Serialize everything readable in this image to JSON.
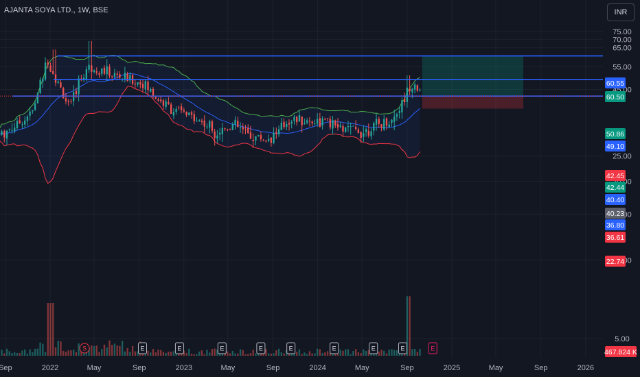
{
  "title": "AJANTA SOYA LTD., 1W, BSE",
  "currency": "INR",
  "chart_data": {
    "type": "candlestick",
    "symbol": "AJANTA SOYA LTD.",
    "interval": "1W",
    "exchange": "BSE",
    "y_ticks": [
      5,
      10,
      15,
      20,
      25,
      40.23,
      45,
      55,
      65,
      70,
      75
    ],
    "x_ticks": [
      "Sep",
      "2022",
      "May",
      "Sep",
      "2023",
      "May",
      "Sep",
      "2024",
      "May",
      "Sep",
      "2025",
      "May",
      "Sep",
      "2026"
    ],
    "colors": {
      "up": "#26a69a",
      "down": "#ef5350",
      "bb_upper": "#4caf50",
      "bb_lower": "#f23645",
      "bb_basis": "#2962ff",
      "horizontal_line": "#2962ff",
      "target_zone": "#089981",
      "stop_zone": "#f23645"
    },
    "horizontal_lines": [
      60.5,
      49.1,
      42.44
    ],
    "position": {
      "entry": 42.45,
      "target": 60.55,
      "stop": 38.0
    },
    "price_labels": [
      {
        "value": "60.55",
        "color": "#2962ff"
      },
      {
        "value": "60.50",
        "color": "#089981"
      },
      {
        "value": "50.86",
        "color": "#089981"
      },
      {
        "value": "49.10",
        "color": "#2962ff"
      },
      {
        "value": "45.00",
        "color": "none"
      },
      {
        "value": "42.45",
        "color": "#f23645"
      },
      {
        "value": "42.44",
        "color": "#089981"
      },
      {
        "value": "40.40",
        "color": "#2962ff"
      },
      {
        "value": "40.23",
        "color": "#5d606b"
      },
      {
        "value": "36.80",
        "color": "#2962ff"
      },
      {
        "value": "36.61",
        "color": "#f23645"
      },
      {
        "value": "22.74",
        "color": "#f23645"
      },
      {
        "value": "467.824 K",
        "color": "#f23645"
      }
    ],
    "events": [
      {
        "date": "2022-04-05",
        "label": "S",
        "kind": "split"
      },
      {
        "date": "2022-09-10",
        "label": "E",
        "kind": "earnings"
      },
      {
        "date": "2022-12-20",
        "label": "E",
        "kind": "earnings"
      },
      {
        "date": "2023-04-15",
        "label": "E",
        "kind": "earnings"
      },
      {
        "date": "2023-07-30",
        "label": "E",
        "kind": "earnings"
      },
      {
        "date": "2023-10-20",
        "label": "E",
        "kind": "earnings"
      },
      {
        "date": "2024-02-15",
        "label": "E",
        "kind": "earnings"
      },
      {
        "date": "2024-06-01",
        "label": "E",
        "kind": "earnings"
      },
      {
        "date": "2024-08-20",
        "label": "E",
        "kind": "earnings"
      },
      {
        "date": "2024-11-10",
        "label": "E",
        "kind": "upcoming-earnings"
      }
    ],
    "ohlc_anchors": [
      {
        "date": "2021-08-15",
        "close": 30
      },
      {
        "date": "2021-10-01",
        "close": 33
      },
      {
        "date": "2021-11-15",
        "close": 37
      },
      {
        "date": "2021-12-10",
        "close": 50
      },
      {
        "date": "2021-12-25",
        "close": 58
      },
      {
        "date": "2022-01-10",
        "close": 52
      },
      {
        "date": "2022-02-05",
        "close": 43
      },
      {
        "date": "2022-02-25",
        "close": 38
      },
      {
        "date": "2022-03-20",
        "close": 48
      },
      {
        "date": "2022-04-15",
        "close": 55
      },
      {
        "date": "2022-05-15",
        "close": 54
      },
      {
        "date": "2022-06-20",
        "close": 51
      },
      {
        "date": "2022-08-10",
        "close": 49
      },
      {
        "date": "2022-09-15",
        "close": 47
      },
      {
        "date": "2022-10-15",
        "close": 42
      },
      {
        "date": "2022-11-15",
        "close": 39
      },
      {
        "date": "2022-12-15",
        "close": 37
      },
      {
        "date": "2023-02-01",
        "close": 35
      },
      {
        "date": "2023-04-01",
        "close": 31
      },
      {
        "date": "2023-05-15",
        "close": 33
      },
      {
        "date": "2023-07-01",
        "close": 30
      },
      {
        "date": "2023-08-15",
        "close": 29
      },
      {
        "date": "2023-09-15",
        "close": 31
      },
      {
        "date": "2023-10-20",
        "close": 35
      },
      {
        "date": "2023-12-01",
        "close": 34
      },
      {
        "date": "2024-01-15",
        "close": 34
      },
      {
        "date": "2024-03-01",
        "close": 32
      },
      {
        "date": "2024-05-01",
        "close": 31
      },
      {
        "date": "2024-06-15",
        "close": 33
      },
      {
        "date": "2024-07-20",
        "close": 34
      },
      {
        "date": "2024-08-20",
        "close": 40
      },
      {
        "date": "2024-09-05",
        "close": 46
      },
      {
        "date": "2024-09-20",
        "close": 48
      },
      {
        "date": "2024-10-10",
        "close": 42.45
      }
    ]
  }
}
